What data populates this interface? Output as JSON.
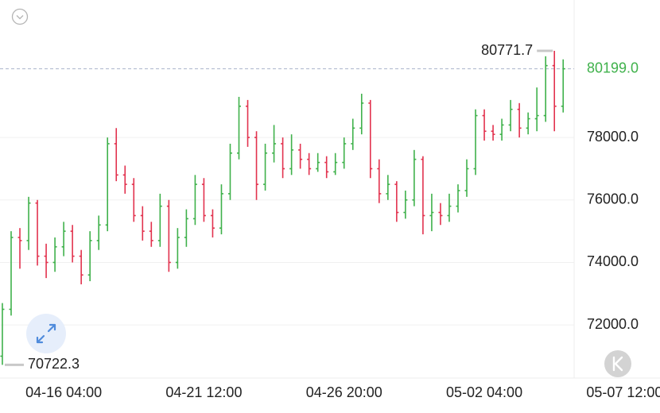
{
  "chart_data": {
    "type": "ohlc",
    "up_color": "#3fb14b",
    "down_color": "#e2324e",
    "xlim": [
      -0.27,
      65.25
    ],
    "xticks": [
      {
        "value": 7,
        "label": "04-16 04:00"
      },
      {
        "value": 23,
        "label": "04-21 12:00"
      },
      {
        "value": 39,
        "label": "04-26 20:00"
      },
      {
        "value": 55,
        "label": "05-02 04:00"
      },
      {
        "value": 71,
        "label": "05-07 12:00"
      }
    ],
    "ylim": [
      70300,
      82400
    ],
    "yticks": [
      {
        "value": 72000,
        "label": "72000.0"
      },
      {
        "value": 74000,
        "label": "74000.0"
      },
      {
        "value": 76000,
        "label": "76000.0"
      },
      {
        "value": 78000,
        "label": "78000.0"
      }
    ],
    "grid": true,
    "open": [
      71000,
      72500,
      74800,
      74700,
      75900,
      74200,
      74000,
      74500,
      75000,
      74200,
      73600,
      74700,
      75200,
      77800,
      76800,
      76500,
      75500,
      75000,
      74700,
      75800,
      74000,
      74800,
      75400,
      76500,
      75500,
      75100,
      76200,
      77500,
      79000,
      78000,
      76500,
      77500,
      77800,
      77000,
      77600,
      77300,
      77000,
      77200,
      76900,
      77200,
      77800,
      78300,
      79100,
      77000,
      76200,
      76500,
      75600,
      76000,
      77300,
      75500,
      75600,
      75500,
      75800,
      76300,
      77000,
      78700,
      78200,
      78100,
      78400,
      78900,
      78300,
      78600,
      78700,
      80300,
      79000
    ],
    "high": [
      72700,
      75000,
      75100,
      76100,
      76000,
      74600,
      74800,
      75300,
      75200,
      74400,
      75000,
      75500,
      78000,
      78300,
      77100,
      76700,
      75800,
      75300,
      76200,
      76000,
      75100,
      75700,
      76800,
      76700,
      75700,
      76500,
      77800,
      79300,
      79200,
      78200,
      77800,
      78400,
      78000,
      78100,
      77800,
      77500,
      77500,
      77400,
      77500,
      78000,
      78600,
      79400,
      79200,
      77300,
      76800,
      76600,
      76300,
      77600,
      77400,
      76200,
      75900,
      76200,
      76500,
      77300,
      78900,
      78900,
      78400,
      78600,
      79200,
      79100,
      78800,
      79600,
      80600,
      80771.7,
      80500
    ],
    "low": [
      70722.3,
      72300,
      73800,
      74400,
      73900,
      73500,
      73700,
      74200,
      74000,
      73300,
      73400,
      74400,
      75000,
      76600,
      76200,
      75300,
      74700,
      74500,
      74500,
      73700,
      73800,
      74500,
      75200,
      75300,
      74800,
      74900,
      76000,
      77300,
      77700,
      76000,
      76300,
      77200,
      76700,
      76800,
      77000,
      76800,
      76900,
      76700,
      76800,
      77000,
      77600,
      78100,
      76700,
      75900,
      76000,
      75300,
      75400,
      75800,
      74900,
      75000,
      75200,
      75300,
      75600,
      76100,
      76800,
      77900,
      77900,
      77900,
      78200,
      78000,
      78100,
      78200,
      78500,
      78200,
      78800
    ],
    "close": [
      72500,
      74800,
      74700,
      75900,
      74200,
      74000,
      74500,
      75000,
      74200,
      73600,
      74700,
      75200,
      77800,
      76800,
      76500,
      75500,
      75000,
      74700,
      75800,
      74000,
      74800,
      75400,
      76500,
      75500,
      75100,
      76200,
      77500,
      79000,
      78000,
      76500,
      77500,
      77800,
      77000,
      77600,
      77300,
      77000,
      77200,
      76900,
      77200,
      77800,
      78300,
      79100,
      77000,
      76200,
      76500,
      75600,
      76000,
      77300,
      75500,
      75600,
      75500,
      75800,
      76300,
      77000,
      78700,
      78200,
      78100,
      78400,
      78900,
      78300,
      78600,
      78700,
      80300,
      79000,
      80199
    ],
    "max_marker": 80771.7,
    "min_marker": 70722.3,
    "last_price": {
      "value": 80199,
      "label": "80199.0"
    }
  }
}
